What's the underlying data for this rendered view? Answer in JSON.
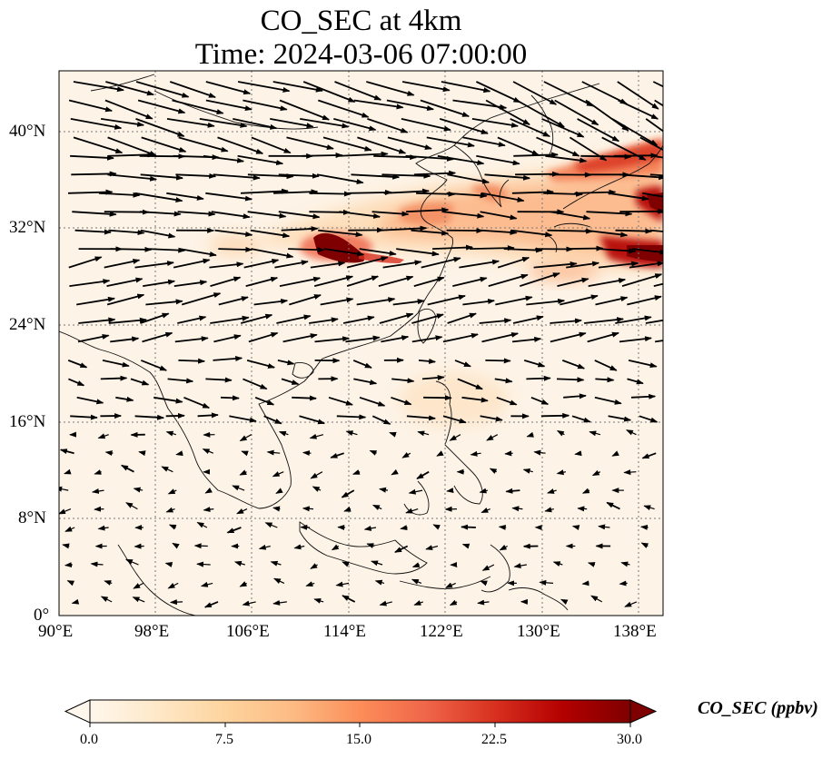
{
  "title": {
    "line1": "CO_SEC at 4km",
    "line2": "Time: 2024-03-06 07:00:00"
  },
  "map": {
    "variable": "CO_SEC",
    "height": "4km",
    "time": "2024-03-06 07:00:00",
    "lon_range": [
      90,
      140
    ],
    "lat_range": [
      0,
      45
    ],
    "lat_ticks": [
      "0°",
      "8°N",
      "16°N",
      "24°N",
      "32°N",
      "40°N"
    ],
    "lon_ticks": [
      "90°E",
      "98°E",
      "106°E",
      "114°E",
      "122°E",
      "130°E",
      "138°E"
    ],
    "gridlines": true,
    "plume_description_hidden": false,
    "high_concentration_areas": [
      {
        "lon": 113,
        "lat": 30.5,
        "level": 30
      },
      {
        "lon": 137,
        "lat": 30.3,
        "level": 28
      },
      {
        "lon": 139,
        "lat": 34,
        "level": 26
      },
      {
        "lon": 136,
        "lat": 37.5,
        "level": 20
      },
      {
        "lon": 118,
        "lat": 33,
        "level": 14
      },
      {
        "lon": 126,
        "lat": 34,
        "level": 10
      }
    ],
    "wind_arrows": "vector field, strong westerlies north of 20°N, weak variable winds in the south"
  },
  "colorbar": {
    "label": "CO_SEC (ppbv)",
    "min": 0.0,
    "max": 30.0,
    "ticks": [
      "0.0",
      "7.5",
      "15.0",
      "22.5",
      "30.0"
    ],
    "colormap": "OrRd",
    "colors": [
      "#fff7ec",
      "#fee8c8",
      "#fdd49e",
      "#fdbb84",
      "#fc8d59",
      "#ef6548",
      "#d7301f",
      "#b30000",
      "#7f0000"
    ]
  }
}
